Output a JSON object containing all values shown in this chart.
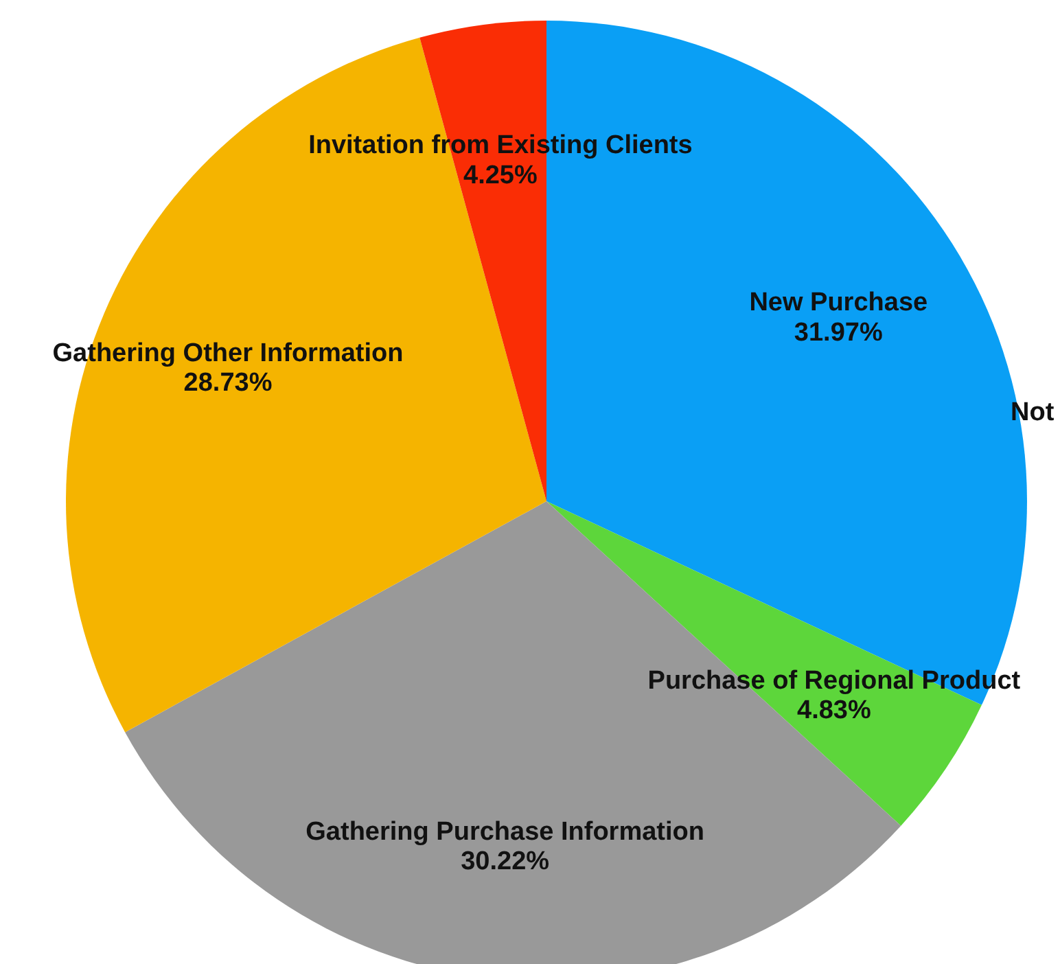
{
  "chart_data": {
    "type": "pie",
    "categories": [
      "New Purchase",
      "Purchase of Regional Product",
      "Gathering Purchase Information",
      "Gathering Other Information",
      "Invitation from Existing Clients"
    ],
    "values": [
      31.97,
      4.83,
      30.22,
      28.73,
      4.25
    ],
    "value_labels": [
      "31.97%",
      "4.83%",
      "30.22%",
      "28.73%",
      "4.25%"
    ],
    "colors": [
      "#0a9ff5",
      "#5dd63b",
      "#999999",
      "#f5b400",
      "#fa2d05"
    ],
    "annotations": [
      "Not"
    ]
  }
}
